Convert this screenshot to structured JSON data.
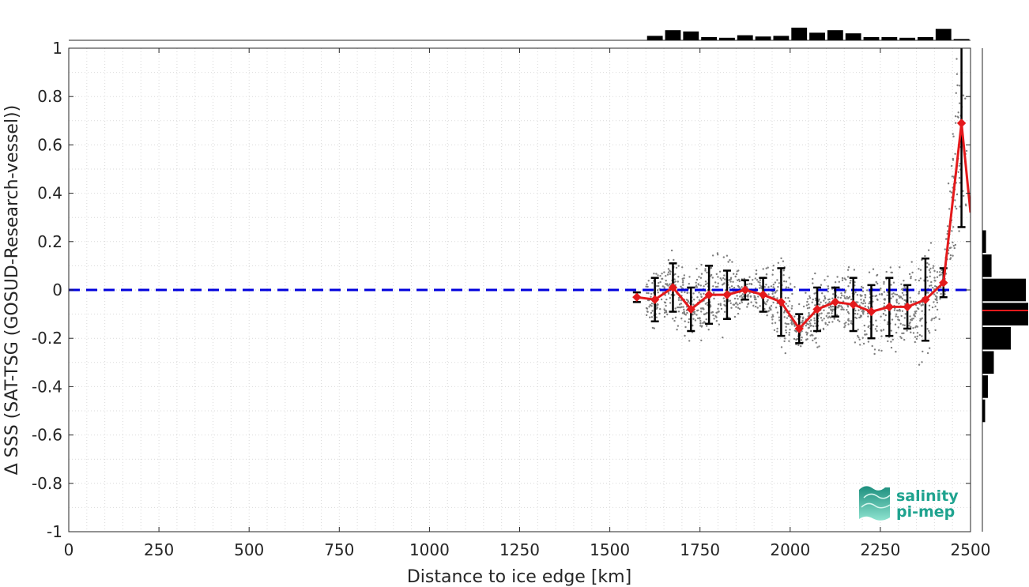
{
  "chart_data": {
    "type": "line",
    "title": "",
    "xlabel": "Distance to ice edge [km]",
    "ylabel": "Δ SSS (SAT-TSG (GOSUD-Research-vessel))",
    "xlim": [
      0,
      2500
    ],
    "ylim": [
      -1,
      1
    ],
    "x_ticks": [
      0,
      250,
      500,
      750,
      1000,
      1250,
      1500,
      1750,
      2000,
      2250,
      2500
    ],
    "y_ticks": [
      -1,
      -0.8,
      -0.6,
      -0.4,
      -0.2,
      0,
      0.2,
      0.4,
      0.6,
      0.8,
      1
    ],
    "grid": true,
    "reference_line": {
      "y": 0,
      "style": "dashed",
      "color": "#0000dd"
    },
    "series": [
      {
        "color": "#e41a1c",
        "x": [
          1575,
          1625,
          1675,
          1725,
          1775,
          1825,
          1875,
          1925,
          1975,
          2025,
          2075,
          2125,
          2175,
          2225,
          2275,
          2325,
          2375,
          2425,
          2475,
          2500
        ],
        "mean": [
          -0.03,
          -0.04,
          0.01,
          -0.08,
          -0.02,
          -0.02,
          0.0,
          -0.02,
          -0.05,
          -0.16,
          -0.08,
          -0.05,
          -0.06,
          -0.09,
          -0.07,
          -0.07,
          -0.04,
          0.03,
          0.69,
          0.32
        ],
        "std": [
          0.02,
          0.09,
          0.1,
          0.09,
          0.12,
          0.1,
          0.04,
          0.07,
          0.14,
          0.06,
          0.09,
          0.06,
          0.11,
          0.11,
          0.12,
          0.09,
          0.17,
          0.06,
          0.43,
          0.0
        ]
      }
    ],
    "top_histogram": {
      "x_centers": [
        1625,
        1675,
        1725,
        1775,
        1825,
        1875,
        1925,
        1975,
        2025,
        2075,
        2125,
        2175,
        2225,
        2275,
        2325,
        2375,
        2425,
        2475
      ],
      "relative_counts": [
        0.35,
        0.8,
        0.7,
        0.25,
        0.2,
        0.4,
        0.3,
        0.35,
        1.0,
        0.6,
        0.8,
        0.55,
        0.25,
        0.25,
        0.2,
        0.25,
        0.9,
        0.1
      ]
    },
    "right_histogram": {
      "y_centers": [
        0.2,
        0.1,
        0.0,
        -0.1,
        -0.2,
        -0.3,
        -0.4,
        -0.5
      ],
      "relative_counts": [
        0.08,
        0.2,
        0.95,
        1.0,
        0.62,
        0.25,
        0.12,
        0.06
      ],
      "mean_marker": -0.085
    },
    "logo": {
      "line1": "salinity",
      "line2": "pi-mep"
    },
    "colors": {
      "mean_line": "#e41a1c",
      "error_bars": "#000000",
      "scatter": "#808080",
      "histograms": "#000000"
    }
  }
}
